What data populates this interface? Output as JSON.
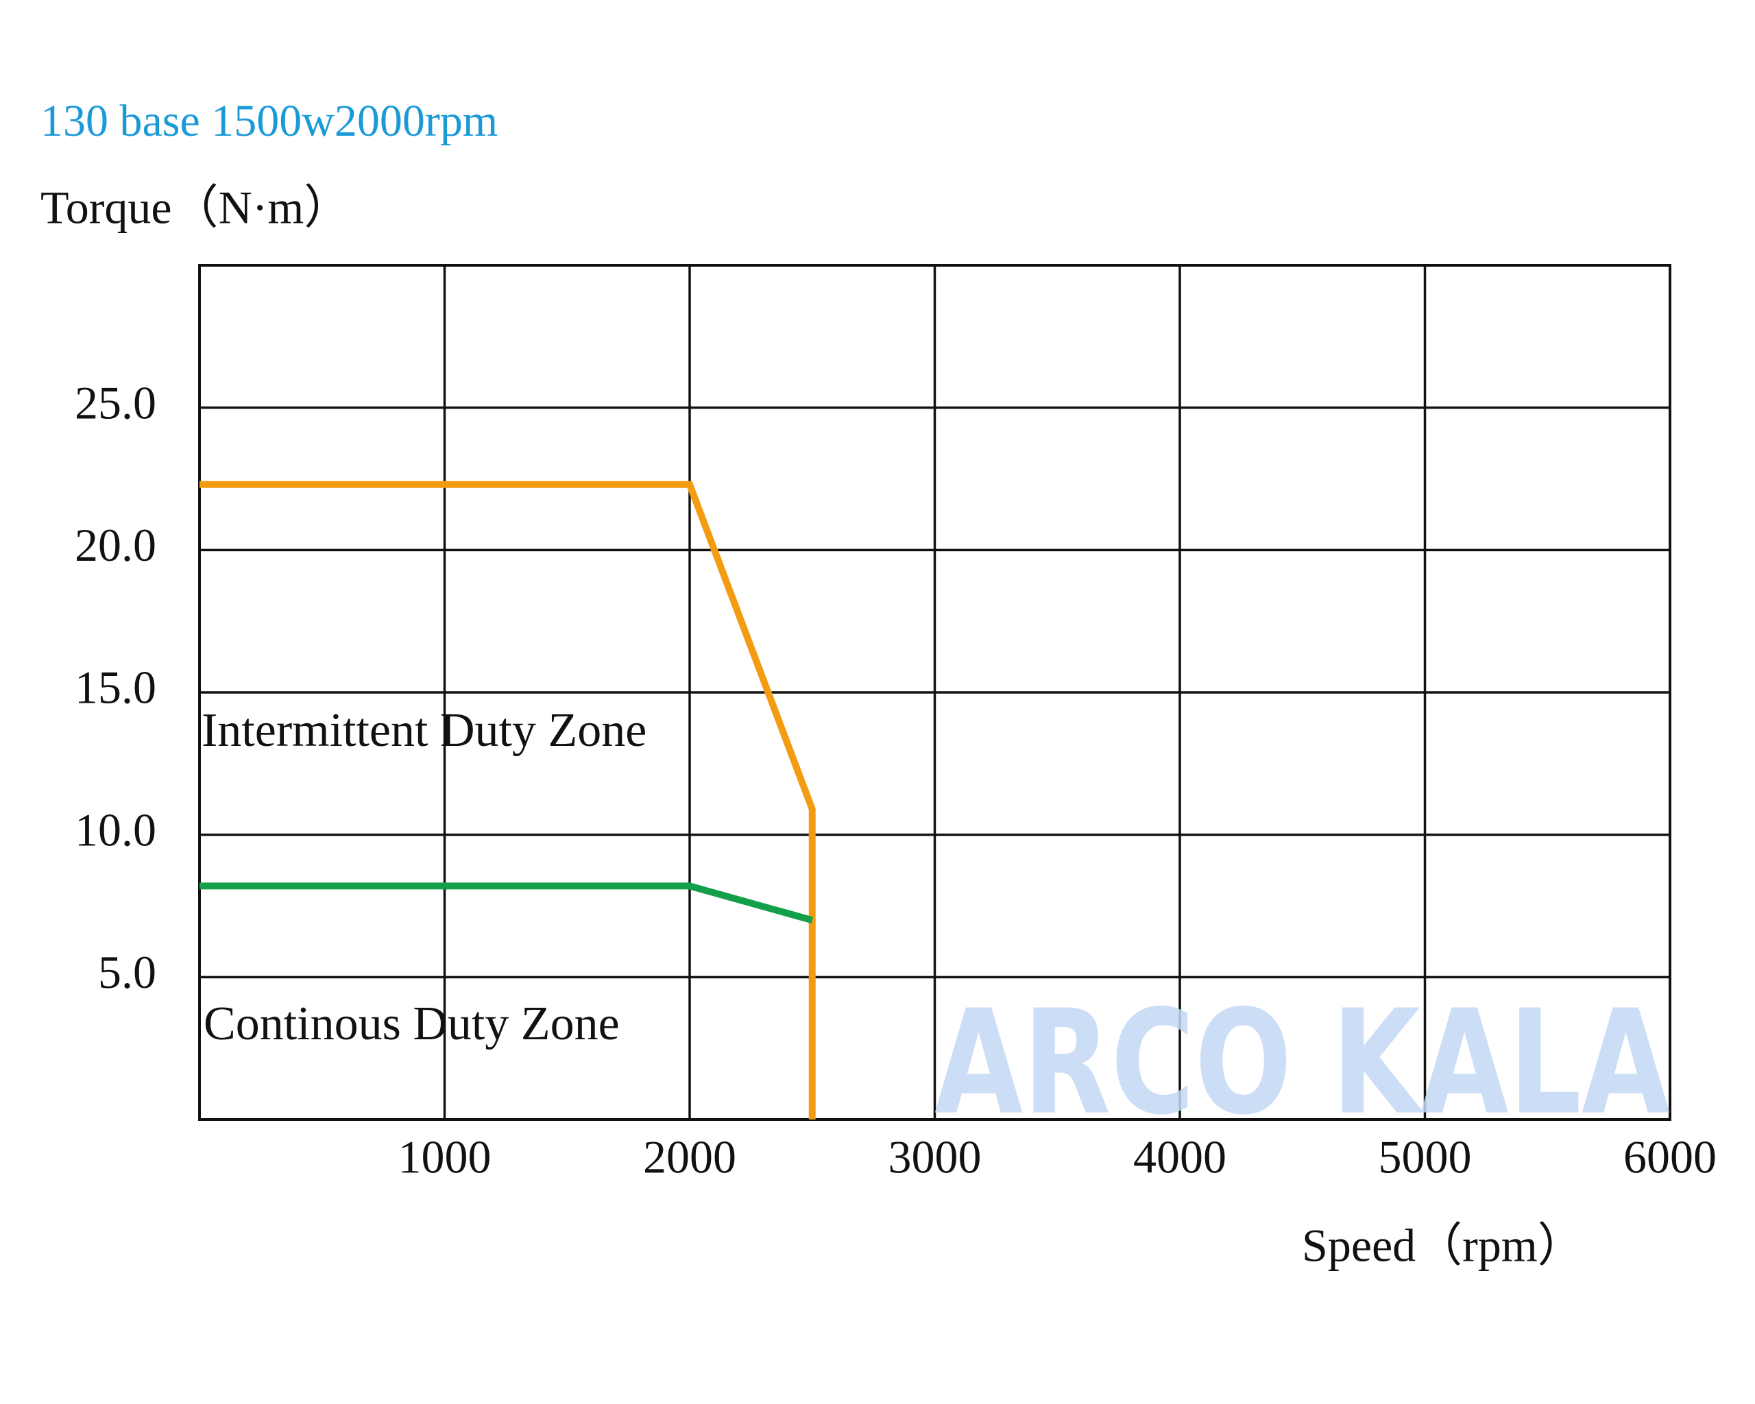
{
  "chart_data": {
    "type": "line",
    "title": "130 base 1500w2000rpm",
    "y_label": "Torque（N·m）",
    "x_label": "Speed（rpm）",
    "xlim": [
      0,
      6000
    ],
    "xticks": [
      1000,
      2000,
      3000,
      4000,
      5000,
      6000
    ],
    "ylim": [
      0,
      30
    ],
    "yticks": [
      {
        "value": 5,
        "label": "5.0"
      },
      {
        "value": 10,
        "label": "10.0"
      },
      {
        "value": 15,
        "label": "15.0"
      },
      {
        "value": 20,
        "label": "20.0"
      },
      {
        "value": 25,
        "label": "25.0"
      }
    ],
    "grid": true,
    "series": [
      {
        "name": "Intermittent Duty Zone",
        "color": "#f39c12",
        "x": [
          0,
          2000,
          2500,
          2500
        ],
        "values": [
          22.3,
          22.3,
          10.9,
          0
        ]
      },
      {
        "name": "Continous Duty Zone",
        "color": "#14a04a",
        "x": [
          0,
          2000,
          2500
        ],
        "values": [
          8.2,
          8.2,
          7.0
        ]
      }
    ],
    "watermark": "ARCO KALA"
  }
}
